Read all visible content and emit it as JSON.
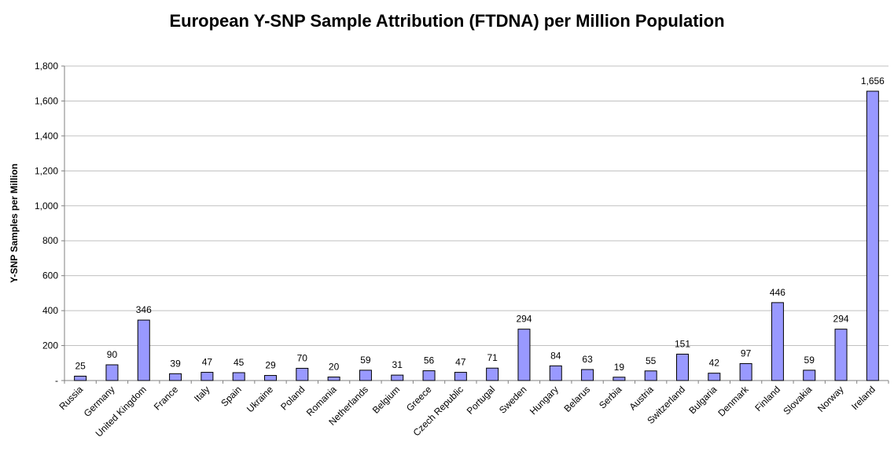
{
  "chart_data": {
    "type": "bar",
    "title": "European Y-SNP Sample Attribution (FTDNA) per Million Population",
    "xlabel": "",
    "ylabel": "Y-SNP Samples per Million",
    "ylim": [
      0,
      1800
    ],
    "yticks": [
      0,
      200,
      400,
      600,
      800,
      1000,
      1200,
      1400,
      1600,
      1800
    ],
    "ytick_labels": [
      "-",
      "200",
      "400",
      "600",
      "800",
      "1,000",
      "1,200",
      "1,400",
      "1,600",
      "1,800"
    ],
    "grid": true,
    "bar_color": "#9999FF",
    "categories": [
      "Russia",
      "Germany",
      "United Kingdom",
      "France",
      "Italy",
      "Spain",
      "Ukraine",
      "Poland",
      "Romania",
      "Netherlands",
      "Belgium",
      "Greece",
      "Czech Republic",
      "Portugal",
      "Sweden",
      "Hungary",
      "Belarus",
      "Serbia",
      "Austria",
      "Switzerland",
      "Bulgaria",
      "Denmark",
      "Finland",
      "Slovakia",
      "Norway",
      "Ireland"
    ],
    "values": [
      25,
      90,
      346,
      39,
      47,
      45,
      29,
      70,
      20,
      59,
      31,
      56,
      47,
      71,
      294,
      84,
      63,
      19,
      55,
      151,
      42,
      97,
      446,
      59,
      294,
      1656
    ],
    "value_labels": [
      "25",
      "90",
      "346",
      "39",
      "47",
      "45",
      "29",
      "70",
      "20",
      "59",
      "31",
      "56",
      "47",
      "71",
      "294",
      "84",
      "63",
      "19",
      "55",
      "151",
      "42",
      "97",
      "446",
      "59",
      "294",
      "1,656"
    ]
  }
}
